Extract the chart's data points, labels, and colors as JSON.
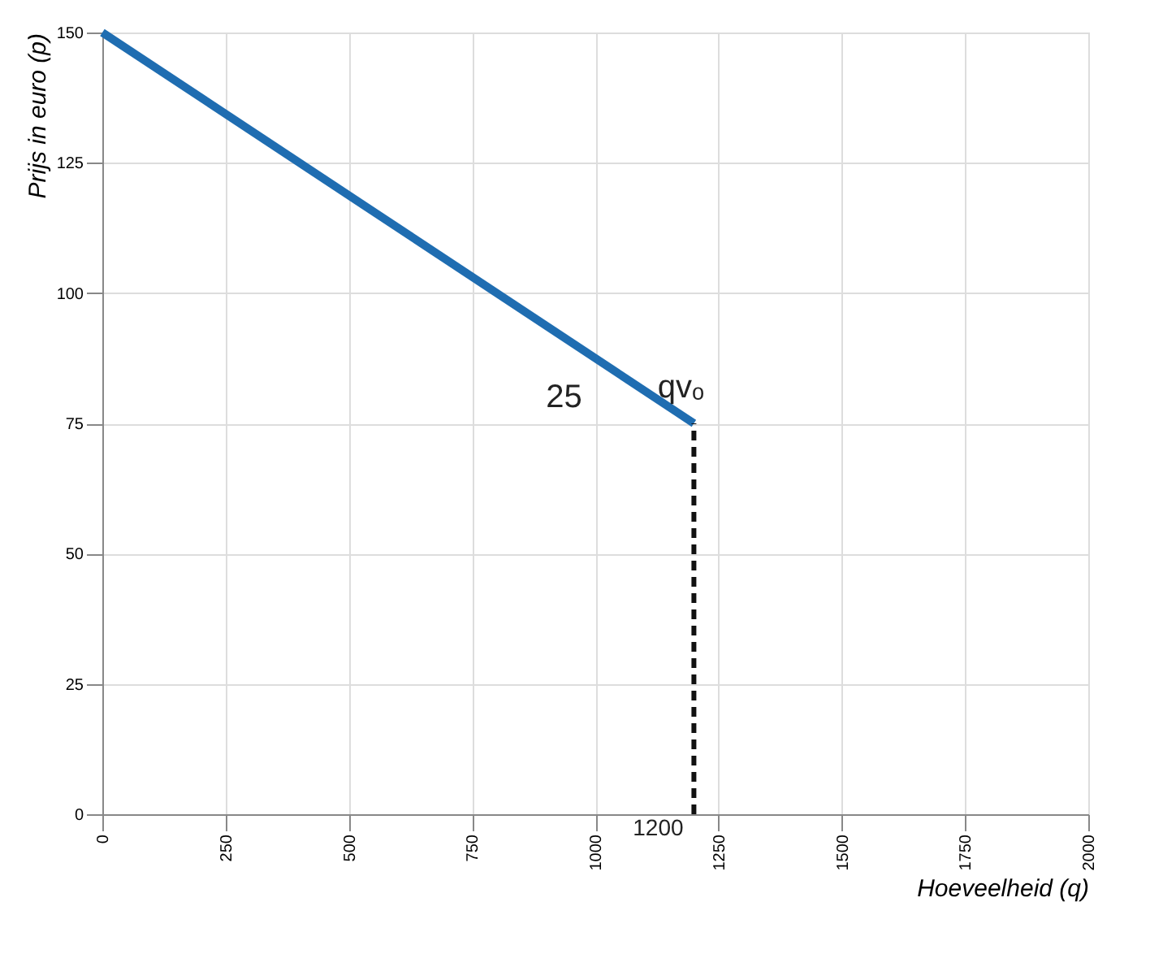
{
  "chart_data": {
    "type": "line",
    "xlabel": "Hoeveelheid (q)",
    "ylabel": "Prijs in euro (p)",
    "xlim": [
      0,
      2000
    ],
    "xticks": [
      0,
      250,
      500,
      750,
      1000,
      1250,
      1500,
      1750,
      2000
    ],
    "ylim": [
      0,
      150
    ],
    "yticks": [
      0,
      25,
      50,
      75,
      100,
      125,
      150
    ],
    "grid": true,
    "x": [
      0,
      1200
    ],
    "series": [
      {
        "values": [
          150,
          75
        ],
        "color": "#1f6db1",
        "line_style": "solid"
      },
      {
        "x": [
          1200,
          1200
        ],
        "values": [
          0,
          75
        ],
        "color": "#111111",
        "line_style": "dashed"
      }
    ],
    "annotations": [
      "25",
      "qvₒ",
      "1200"
    ]
  }
}
